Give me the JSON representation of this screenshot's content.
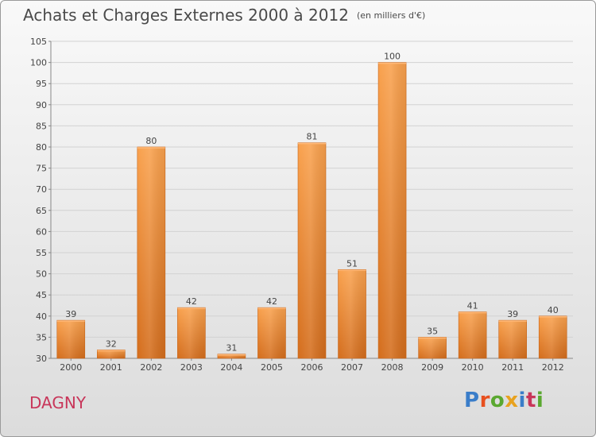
{
  "header": {
    "title": "Achats et Charges Externes 2000 à 2012",
    "unit": "(en milliers d'€)"
  },
  "commune": "DAGNY",
  "logo": {
    "text": "Proxiti",
    "letter_colors": [
      "#3a7dc9",
      "#e8501f",
      "#5aa830",
      "#e8a21f",
      "#3a7dc9",
      "#c8365a",
      "#5aa830"
    ]
  },
  "chart_data": {
    "type": "bar",
    "title": "Achats et Charges Externes 2000 à 2012",
    "subtitle": "(en milliers d'€)",
    "categories": [
      "2000",
      "2001",
      "2002",
      "2003",
      "2004",
      "2005",
      "2006",
      "2007",
      "2008",
      "2009",
      "2010",
      "2011",
      "2012"
    ],
    "values": [
      39,
      32,
      80,
      42,
      31,
      42,
      81,
      51,
      100,
      35,
      41,
      39,
      40
    ],
    "ylim": [
      30,
      105
    ],
    "yticks": [
      30,
      35,
      40,
      45,
      50,
      55,
      60,
      65,
      70,
      75,
      80,
      85,
      90,
      95,
      100,
      105
    ],
    "grid": true,
    "bar_color": "#f0923a",
    "bar_color_dark": "#d36f1e"
  }
}
